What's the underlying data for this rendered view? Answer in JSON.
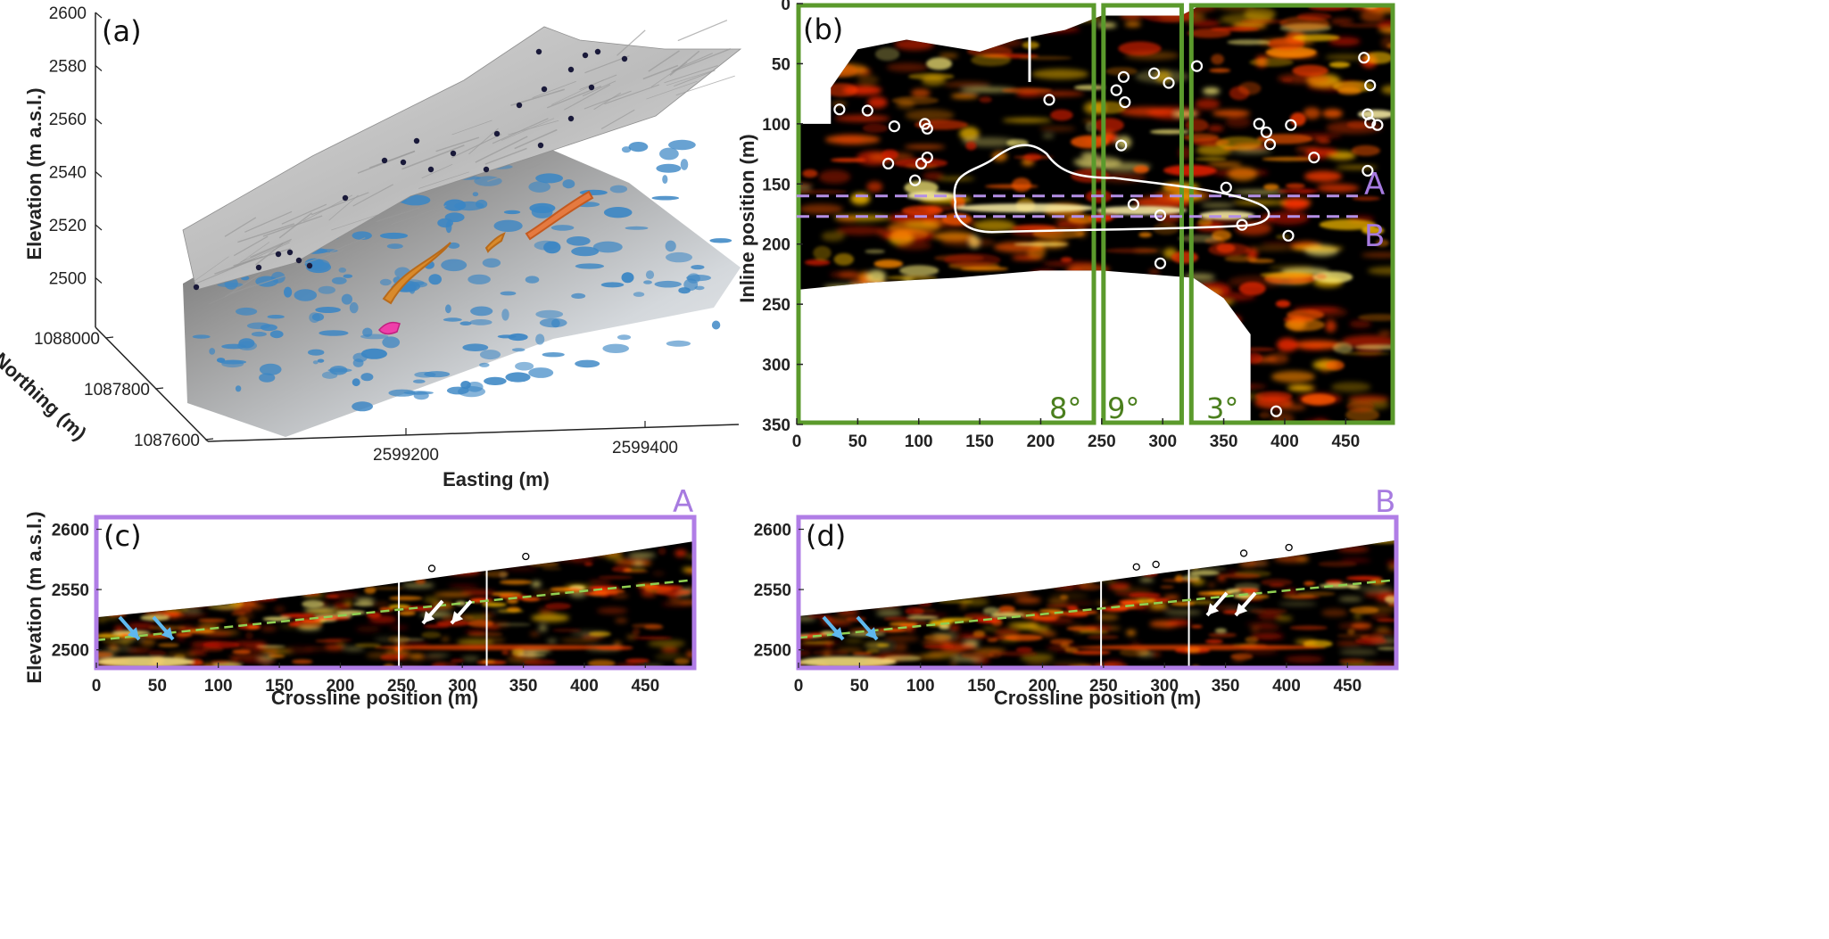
{
  "panels": {
    "a": {
      "label": "(a)",
      "zlabel": "Elevation (m a.s.l.)",
      "ylabel": "Northing (m)",
      "xlabel": "Easting (m)",
      "zticks": [
        "2600",
        "2580",
        "2560",
        "2540",
        "2520",
        "2500"
      ],
      "yticks": [
        "1088000",
        "1087800",
        "1087600"
      ],
      "xticks": [
        "2599200",
        "2599400"
      ]
    },
    "b": {
      "label": "(b)",
      "ylabel": "Inline position (m)",
      "xticks": [
        "0",
        "50",
        "100",
        "150",
        "200",
        "250",
        "300",
        "350",
        "400",
        "450"
      ],
      "yticks": [
        "0",
        "50",
        "100",
        "150",
        "200",
        "250",
        "300",
        "350"
      ],
      "sections": [
        "8°",
        "9°",
        "3°"
      ],
      "profiles": [
        "A",
        "B"
      ],
      "colors": {
        "section_box": "#5b9a2c",
        "profile_line": "#b48fe6",
        "bg": "#000000",
        "hot": "#ff3300"
      }
    },
    "c": {
      "label": "(c)",
      "profile": "A",
      "ylabel": "Elevation (m a.s.l.)",
      "xlabel": "Crossline position (m)",
      "xticks": [
        "0",
        "50",
        "100",
        "150",
        "200",
        "250",
        "300",
        "350",
        "400",
        "450"
      ],
      "yticks": [
        "2600",
        "2550",
        "2500"
      ]
    },
    "d": {
      "label": "(d)",
      "profile": "B",
      "xlabel": "Crossline position (m)",
      "xticks": [
        "0",
        "50",
        "100",
        "150",
        "200",
        "250",
        "300",
        "350",
        "400",
        "450"
      ],
      "yticks": [
        "2600",
        "2550",
        "2500"
      ]
    }
  },
  "chart_data": [
    {
      "type": "scatter",
      "panel": "(a)",
      "z_ticks": [
        2600,
        2580,
        2560,
        2540,
        2520,
        2500
      ],
      "y_ticks": [
        1088000,
        1087800,
        1087600
      ],
      "x_ticks": [
        2599200,
        2599400
      ]
    },
    {
      "type": "heatmap",
      "panel": "(b)",
      "xlim": [
        0,
        490
      ],
      "ylim": [
        350,
        0
      ],
      "section_bounds_x": [
        [
          0,
          245
        ],
        [
          250,
          317
        ],
        [
          322,
          490
        ]
      ],
      "section_dips_deg": [
        8,
        9,
        3
      ],
      "profile_lines_inline": {
        "A": 160,
        "B": 177
      },
      "borehole_points": [
        {
          "x": 35,
          "y": 88
        },
        {
          "x": 58,
          "y": 89
        },
        {
          "x": 80,
          "y": 102
        },
        {
          "x": 105,
          "y": 100
        },
        {
          "x": 107,
          "y": 104
        },
        {
          "x": 75,
          "y": 133
        },
        {
          "x": 102,
          "y": 133
        },
        {
          "x": 107,
          "y": 128
        },
        {
          "x": 97,
          "y": 147
        },
        {
          "x": 207,
          "y": 80
        },
        {
          "x": 268,
          "y": 61
        },
        {
          "x": 262,
          "y": 72
        },
        {
          "x": 269,
          "y": 82
        },
        {
          "x": 266,
          "y": 118
        },
        {
          "x": 293,
          "y": 58
        },
        {
          "x": 305,
          "y": 66
        },
        {
          "x": 328,
          "y": 52
        },
        {
          "x": 276,
          "y": 167
        },
        {
          "x": 298,
          "y": 176
        },
        {
          "x": 298,
          "y": 216
        },
        {
          "x": 352,
          "y": 153
        },
        {
          "x": 365,
          "y": 184
        },
        {
          "x": 379,
          "y": 100
        },
        {
          "x": 385,
          "y": 107
        },
        {
          "x": 388,
          "y": 117
        },
        {
          "x": 405,
          "y": 101
        },
        {
          "x": 403,
          "y": 193
        },
        {
          "x": 393,
          "y": 339
        },
        {
          "x": 424,
          "y": 128
        },
        {
          "x": 465,
          "y": 45
        },
        {
          "x": 470,
          "y": 68
        },
        {
          "x": 468,
          "y": 92
        },
        {
          "x": 470,
          "y": 99
        },
        {
          "x": 476,
          "y": 101
        },
        {
          "x": 468,
          "y": 139
        }
      ]
    },
    {
      "type": "heatmap",
      "panel": "(c)",
      "profile": "A",
      "xlim": [
        0,
        490
      ],
      "ylim": [
        2485,
        2610
      ],
      "section_bounds_x": [
        248,
        320
      ],
      "surface_elevation": {
        "x": [
          0,
          100,
          200,
          300,
          400,
          490
        ],
        "y": [
          2527,
          2537,
          2549,
          2563,
          2576,
          2590
        ]
      },
      "reflector_dashed": {
        "x": [
          0,
          490
        ],
        "y": [
          2508,
          2558
        ]
      },
      "borehole_marks_x": [
        275,
        352
      ]
    },
    {
      "type": "heatmap",
      "panel": "(d)",
      "profile": "B",
      "xlim": [
        0,
        490
      ],
      "ylim": [
        2485,
        2610
      ],
      "section_bounds_x": [
        248,
        320
      ],
      "surface_elevation": {
        "x": [
          0,
          100,
          200,
          300,
          400,
          490
        ],
        "y": [
          2528,
          2538,
          2550,
          2564,
          2577,
          2591
        ]
      },
      "reflector_dashed": {
        "x": [
          0,
          490
        ],
        "y": [
          2510,
          2558
        ]
      },
      "borehole_marks_x": [
        277,
        293,
        365,
        402
      ]
    }
  ]
}
